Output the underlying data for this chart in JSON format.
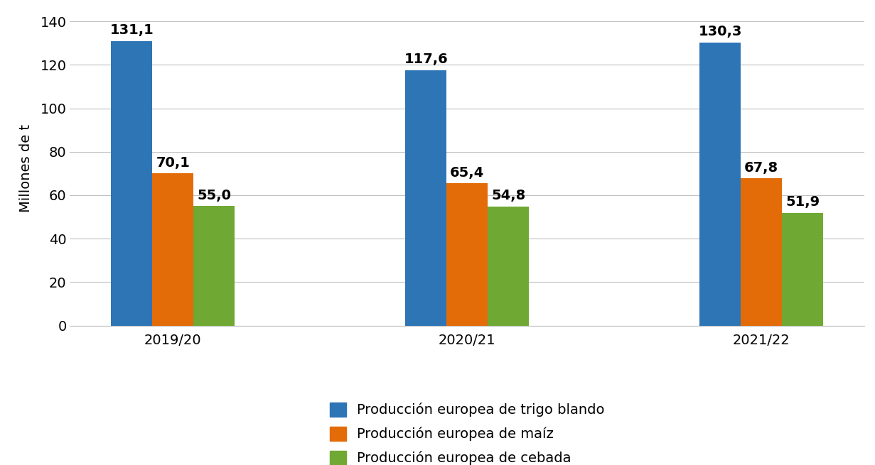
{
  "categories": [
    "2019/20",
    "2020/21",
    "2021/22"
  ],
  "series": {
    "Producción europea de trigo blando": [
      131.1,
      117.6,
      130.3
    ],
    "Producción europea de maíz": [
      70.1,
      65.4,
      67.8
    ],
    "Producción europea de cebada": [
      55.0,
      54.8,
      51.9
    ]
  },
  "colors": {
    "Producción europea de trigo blando": "#2E75B6",
    "Producción europea de maíz": "#E36C09",
    "Producción europea de cebada": "#70A834"
  },
  "ylabel": "Millones de t",
  "ylim": [
    0,
    145
  ],
  "yticks": [
    0,
    20,
    40,
    60,
    80,
    100,
    120,
    140
  ],
  "bar_width": 0.28,
  "label_fontsize": 14,
  "tick_fontsize": 14,
  "ylabel_fontsize": 14,
  "legend_fontsize": 14,
  "background_color": "#FFFFFF",
  "grid_color": "#C0C0C0"
}
